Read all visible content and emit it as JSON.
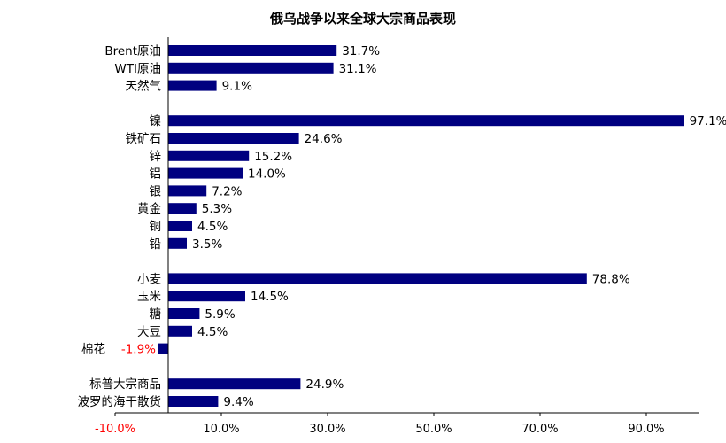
{
  "chart_data": {
    "type": "bar",
    "orientation": "horizontal",
    "title": "俄乌战争以来全球大宗商品表现",
    "groups": [
      {
        "items": [
          {
            "label": "Brent原油",
            "value": 31.7,
            "value_label": "31.7%"
          },
          {
            "label": "WTI原油",
            "value": 31.1,
            "value_label": "31.1%"
          },
          {
            "label": "天然气",
            "value": 9.1,
            "value_label": "9.1%"
          }
        ]
      },
      {
        "items": [
          {
            "label": "镍",
            "value": 97.1,
            "value_label": "97.1%"
          },
          {
            "label": "铁矿石",
            "value": 24.6,
            "value_label": "24.6%"
          },
          {
            "label": "锌",
            "value": 15.2,
            "value_label": "15.2%"
          },
          {
            "label": "铝",
            "value": 14.0,
            "value_label": "14.0%"
          },
          {
            "label": "银",
            "value": 7.2,
            "value_label": "7.2%"
          },
          {
            "label": "黄金",
            "value": 5.3,
            "value_label": "5.3%"
          },
          {
            "label": "铜",
            "value": 4.5,
            "value_label": "4.5%"
          },
          {
            "label": "铅",
            "value": 3.5,
            "value_label": "3.5%"
          }
        ]
      },
      {
        "items": [
          {
            "label": "小麦",
            "value": 78.8,
            "value_label": "78.8%"
          },
          {
            "label": "玉米",
            "value": 14.5,
            "value_label": "14.5%"
          },
          {
            "label": "糖",
            "value": 5.9,
            "value_label": "5.9%"
          },
          {
            "label": "大豆",
            "value": 4.5,
            "value_label": "4.5%"
          },
          {
            "label": "棉花",
            "value": -1.9,
            "value_label": "-1.9%"
          }
        ]
      },
      {
        "items": [
          {
            "label": "标普大宗商品",
            "value": 24.9,
            "value_label": "24.9%"
          },
          {
            "label": "波罗的海干散货",
            "value": 9.4,
            "value_label": "9.4%"
          }
        ]
      }
    ],
    "x_ticks": [
      {
        "value": -10,
        "label": "-10.0%"
      },
      {
        "value": 10,
        "label": "10.0%"
      },
      {
        "value": 30,
        "label": "30.0%"
      },
      {
        "value": 50,
        "label": "50.0%"
      },
      {
        "value": 70,
        "label": "70.0%"
      },
      {
        "value": 90,
        "label": "90.0%"
      }
    ],
    "xlim": [
      -10,
      100
    ],
    "bar_color": "#000080",
    "negative_label_color": "#ff0000",
    "grid": false,
    "legend": "none"
  }
}
